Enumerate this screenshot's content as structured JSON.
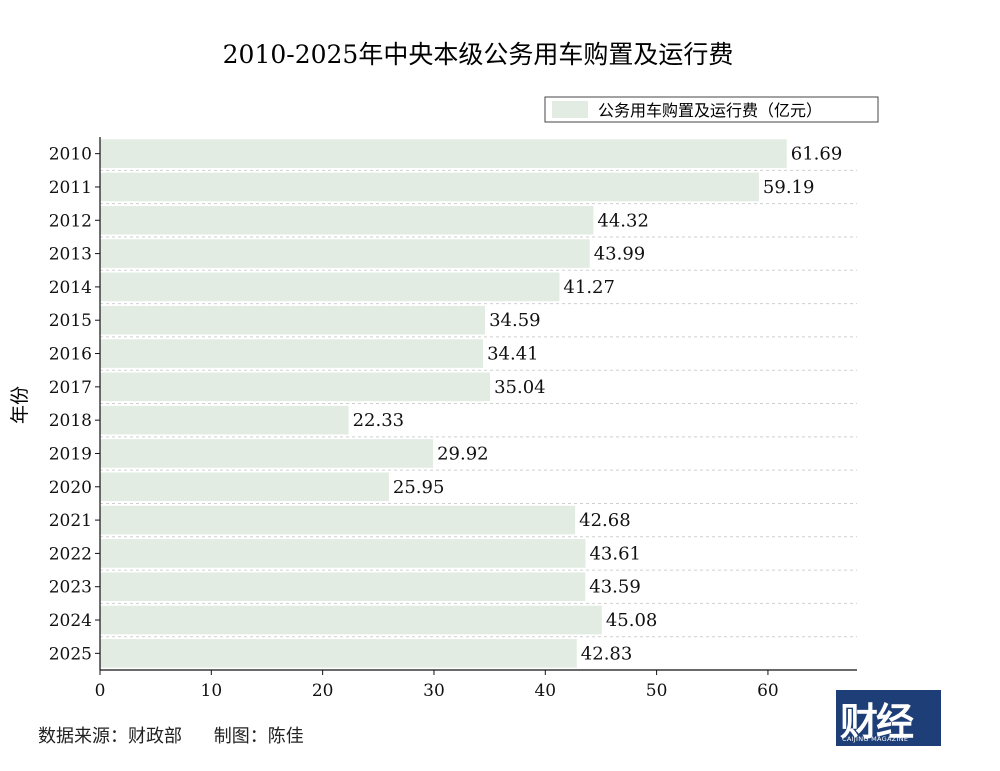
{
  "chart_data": {
    "type": "bar",
    "orientation": "horizontal",
    "title": "2010-2025年中央本级公务用车购置及运行费",
    "ylabel": "年份",
    "xlabel": "",
    "categories": [
      "2010",
      "2011",
      "2012",
      "2013",
      "2014",
      "2015",
      "2016",
      "2017",
      "2018",
      "2019",
      "2020",
      "2021",
      "2022",
      "2023",
      "2024",
      "2025"
    ],
    "series": [
      {
        "name": "公务用车购置及运行费（亿元）",
        "values": [
          61.69,
          59.19,
          44.32,
          43.99,
          41.27,
          34.59,
          34.41,
          35.04,
          22.33,
          29.92,
          25.95,
          42.68,
          43.61,
          43.59,
          45.08,
          42.83
        ]
      }
    ],
    "value_labels": [
      "61.69",
      "59.19",
      "44.32",
      "43.99",
      "41.27",
      "34.59",
      "34.41",
      "35.04",
      "22.33",
      "29.92",
      "25.95",
      "42.68",
      "43.61",
      "43.59",
      "45.08",
      "42.83"
    ],
    "xlim": [
      0,
      68
    ],
    "xticks": [
      0,
      10,
      20,
      30,
      40,
      50,
      60
    ],
    "grid": "horizontal-dashed",
    "legend": "top-right",
    "bar_color": "#e3ece3"
  },
  "footer": {
    "source": "数据来源：财政部",
    "author": "制图：陈佳"
  },
  "logo": {
    "text": "财经",
    "subtitle": "CAIJING MAGAZINE",
    "color": "#1d3e76"
  }
}
